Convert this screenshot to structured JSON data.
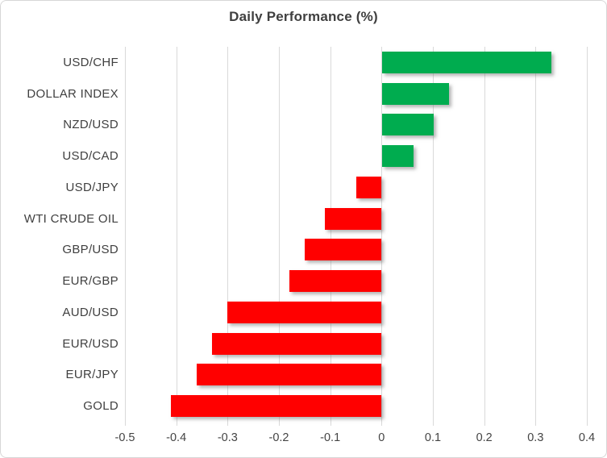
{
  "chart_data": {
    "type": "bar",
    "orientation": "horizontal",
    "title": "Daily Performance (%)",
    "categories": [
      "USD/CHF",
      "DOLLAR INDEX",
      "NZD/USD",
      "USD/CAD",
      "USD/JPY",
      "WTI CRUDE OIL",
      "GBP/USD",
      "EUR/GBP",
      "AUD/USD",
      "EUR/USD",
      "EUR/JPY",
      "GOLD"
    ],
    "values": [
      0.33,
      0.13,
      0.1,
      0.06,
      -0.05,
      -0.11,
      -0.15,
      -0.18,
      -0.3,
      -0.33,
      -0.36,
      -0.41
    ],
    "xlabel": "",
    "ylabel": "",
    "xlim": [
      -0.5,
      0.4
    ],
    "xticks": [
      -0.5,
      -0.4,
      -0.3,
      -0.2,
      -0.1,
      0,
      0.1,
      0.2,
      0.3,
      0.4
    ],
    "xtick_labels": [
      "-0.5",
      "-0.4",
      "-0.3",
      "-0.2",
      "-0.1",
      "0",
      "0.1",
      "0.2",
      "0.3",
      "0.4"
    ],
    "grid": true,
    "legend": false,
    "colors": {
      "positive": "#00AC4F",
      "negative": "#FF0000",
      "gridline": "#D9D9D9"
    }
  }
}
